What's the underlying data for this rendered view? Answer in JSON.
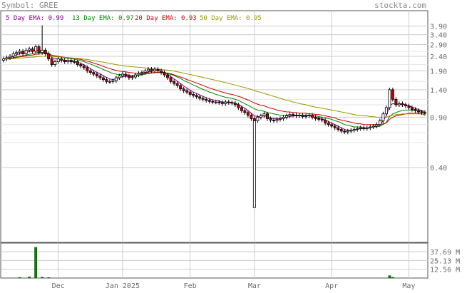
{
  "header": {
    "symbol_label": "Symbol: GREE",
    "brand": "stockta.com"
  },
  "chart_data": [
    {
      "type": "candlestick",
      "symbol": "GREE",
      "legend": [
        {
          "label": "5 Day EMA: 0.99",
          "color": "#880088"
        },
        {
          "label": "13 Day EMA: 0.97",
          "color": "#008800"
        },
        {
          "label": "20 Day EMA: 0.93",
          "color": "#cc0000"
        },
        {
          "label": "50 Day EMA: 0.95",
          "color": "#999900"
        }
      ],
      "y_scale": "log",
      "ylim": [
        0.12,
        5.0
      ],
      "y_ticks": [
        {
          "value": 3.9,
          "label": "3.90"
        },
        {
          "value": 3.4,
          "label": "3.40"
        },
        {
          "value": 2.9,
          "label": "2.90"
        },
        {
          "value": 2.4,
          "label": "2.40"
        },
        {
          "value": 1.9,
          "label": "1.90"
        },
        {
          "value": 1.4,
          "label": "1.40"
        },
        {
          "value": 0.9,
          "label": "0.90"
        },
        {
          "value": 0.4,
          "label": "0.40"
        }
      ],
      "x_ticks": [
        {
          "index": 17,
          "label": "Dec"
        },
        {
          "index": 37,
          "label": "Jan 2025"
        },
        {
          "index": 58,
          "label": "Feb"
        },
        {
          "index": 78,
          "label": "Mar"
        },
        {
          "index": 102,
          "label": "Apr"
        },
        {
          "index": 126,
          "label": "May"
        }
      ],
      "colors": {
        "up": "#ffffff",
        "down": "#cc0000",
        "wick": "#000000",
        "grid": "#cccccc"
      },
      "candles_close": [
        2.3,
        2.35,
        2.4,
        2.5,
        2.55,
        2.6,
        2.5,
        2.65,
        2.7,
        2.6,
        2.8,
        2.55,
        2.65,
        2.5,
        2.3,
        2.1,
        2.2,
        2.3,
        2.25,
        2.2,
        2.25,
        2.2,
        2.2,
        2.1,
        2.05,
        2.0,
        1.9,
        1.85,
        1.8,
        1.75,
        1.7,
        1.65,
        1.6,
        1.6,
        1.62,
        1.7,
        1.75,
        1.8,
        1.75,
        1.7,
        1.72,
        1.78,
        1.82,
        1.85,
        1.9,
        1.95,
        1.9,
        1.95,
        1.9,
        1.85,
        1.78,
        1.7,
        1.6,
        1.55,
        1.5,
        1.42,
        1.38,
        1.35,
        1.3,
        1.28,
        1.25,
        1.22,
        1.2,
        1.18,
        1.16,
        1.15,
        1.15,
        1.14,
        1.12,
        1.15,
        1.14,
        1.13,
        1.1,
        1.05,
        1.0,
        0.97,
        0.93,
        0.88,
        0.85,
        0.9,
        0.92,
        0.95,
        0.88,
        0.86,
        0.85,
        0.87,
        0.88,
        0.9,
        0.92,
        0.94,
        0.93,
        0.92,
        0.93,
        0.91,
        0.92,
        0.93,
        0.9,
        0.88,
        0.87,
        0.86,
        0.82,
        0.8,
        0.78,
        0.76,
        0.74,
        0.72,
        0.71,
        0.72,
        0.73,
        0.74,
        0.75,
        0.76,
        0.75,
        0.76,
        0.77,
        0.78,
        0.8,
        0.85,
        0.95,
        1.05,
        1.4,
        1.2,
        1.1,
        1.12,
        1.1,
        1.08,
        1.05,
        1.02,
        1.0,
        0.98,
        0.97,
        0.96
      ],
      "spike_low": {
        "index": 78,
        "value": 0.21
      },
      "spike_high": {
        "index": 12,
        "value": 3.95
      },
      "ema": {
        "5": [
          2.3,
          2.32,
          2.35,
          2.4,
          2.45,
          2.5,
          2.5,
          2.55,
          2.6,
          2.6,
          2.66,
          2.62,
          2.63,
          2.59,
          2.49,
          2.36,
          2.31,
          2.3,
          2.28,
          2.25,
          2.25,
          2.23,
          2.22,
          2.18,
          2.14,
          2.09,
          2.03,
          1.97,
          1.91,
          1.86,
          1.81,
          1.76,
          1.71,
          1.67,
          1.65,
          1.67,
          1.7,
          1.73,
          1.74,
          1.73,
          1.73,
          1.75,
          1.77,
          1.8,
          1.83,
          1.87,
          1.88,
          1.9,
          1.9,
          1.88,
          1.85,
          1.8,
          1.73,
          1.67,
          1.61,
          1.55,
          1.49,
          1.44,
          1.39,
          1.35,
          1.32,
          1.29,
          1.26,
          1.23,
          1.21,
          1.19,
          1.18,
          1.17,
          1.15,
          1.15,
          1.15,
          1.14,
          1.13,
          1.1,
          1.07,
          1.04,
          1.0,
          0.96,
          0.92,
          0.91,
          0.91,
          0.92,
          0.91,
          0.89,
          0.88,
          0.88,
          0.88,
          0.89,
          0.9,
          0.91,
          0.92,
          0.92,
          0.92,
          0.92,
          0.92,
          0.92,
          0.91,
          0.9,
          0.89,
          0.88,
          0.86,
          0.84,
          0.82,
          0.8,
          0.78,
          0.76,
          0.74,
          0.73,
          0.73,
          0.73,
          0.74,
          0.75,
          0.75,
          0.75,
          0.76,
          0.77,
          0.78,
          0.8,
          0.85,
          0.92,
          1.08,
          1.12,
          1.11,
          1.11,
          1.11,
          1.1,
          1.08,
          1.06,
          1.04,
          1.02,
          1.0,
          0.99
        ],
        "13": [
          2.3,
          2.31,
          2.32,
          2.35,
          2.38,
          2.41,
          2.42,
          2.45,
          2.48,
          2.5,
          2.54,
          2.54,
          2.56,
          2.55,
          2.51,
          2.45,
          2.41,
          2.39,
          2.37,
          2.34,
          2.33,
          2.31,
          2.29,
          2.26,
          2.23,
          2.2,
          2.16,
          2.12,
          2.07,
          2.03,
          1.99,
          1.94,
          1.9,
          1.86,
          1.82,
          1.8,
          1.79,
          1.79,
          1.78,
          1.77,
          1.77,
          1.77,
          1.77,
          1.78,
          1.8,
          1.82,
          1.83,
          1.84,
          1.85,
          1.85,
          1.84,
          1.82,
          1.79,
          1.76,
          1.72,
          1.68,
          1.63,
          1.59,
          1.55,
          1.51,
          1.48,
          1.44,
          1.41,
          1.38,
          1.35,
          1.33,
          1.3,
          1.28,
          1.26,
          1.24,
          1.23,
          1.22,
          1.2,
          1.18,
          1.15,
          1.12,
          1.09,
          1.06,
          1.03,
          1.01,
          1.0,
          0.99,
          0.97,
          0.96,
          0.95,
          0.94,
          0.93,
          0.93,
          0.93,
          0.93,
          0.93,
          0.93,
          0.93,
          0.93,
          0.93,
          0.93,
          0.92,
          0.92,
          0.91,
          0.9,
          0.89,
          0.88,
          0.87,
          0.85,
          0.84,
          0.82,
          0.8,
          0.79,
          0.78,
          0.77,
          0.77,
          0.77,
          0.76,
          0.76,
          0.76,
          0.77,
          0.77,
          0.78,
          0.8,
          0.83,
          0.91,
          0.95,
          0.97,
          0.99,
          1.0,
          1.01,
          1.01,
          1.01,
          1.0,
          1.0,
          0.99,
          0.97
        ],
        "20": [
          2.3,
          2.3,
          2.31,
          2.33,
          2.35,
          2.38,
          2.39,
          2.41,
          2.44,
          2.45,
          2.48,
          2.49,
          2.5,
          2.5,
          2.48,
          2.44,
          2.42,
          2.4,
          2.38,
          2.36,
          2.35,
          2.34,
          2.32,
          2.3,
          2.28,
          2.25,
          2.22,
          2.19,
          2.15,
          2.12,
          2.08,
          2.04,
          2.0,
          1.97,
          1.94,
          1.91,
          1.89,
          1.88,
          1.87,
          1.85,
          1.84,
          1.83,
          1.83,
          1.83,
          1.83,
          1.84,
          1.84,
          1.85,
          1.85,
          1.85,
          1.84,
          1.83,
          1.81,
          1.78,
          1.75,
          1.72,
          1.69,
          1.65,
          1.62,
          1.59,
          1.56,
          1.53,
          1.5,
          1.47,
          1.44,
          1.42,
          1.39,
          1.37,
          1.35,
          1.33,
          1.31,
          1.3,
          1.28,
          1.26,
          1.24,
          1.21,
          1.19,
          1.16,
          1.13,
          1.11,
          1.09,
          1.08,
          1.06,
          1.04,
          1.03,
          1.01,
          1.0,
          0.99,
          0.98,
          0.98,
          0.97,
          0.97,
          0.96,
          0.96,
          0.96,
          0.95,
          0.95,
          0.94,
          0.94,
          0.93,
          0.92,
          0.91,
          0.9,
          0.89,
          0.87,
          0.86,
          0.85,
          0.84,
          0.83,
          0.82,
          0.81,
          0.81,
          0.8,
          0.8,
          0.8,
          0.8,
          0.8,
          0.8,
          0.81,
          0.82,
          0.87,
          0.9,
          0.92,
          0.93,
          0.94,
          0.95,
          0.96,
          0.96,
          0.96,
          0.96,
          0.95,
          0.93
        ],
        "50": [
          2.3,
          2.3,
          2.3,
          2.31,
          2.32,
          2.33,
          2.34,
          2.35,
          2.36,
          2.37,
          2.38,
          2.39,
          2.4,
          2.4,
          2.4,
          2.39,
          2.38,
          2.38,
          2.37,
          2.36,
          2.35,
          2.34,
          2.33,
          2.32,
          2.31,
          2.29,
          2.28,
          2.26,
          2.24,
          2.22,
          2.2,
          2.18,
          2.16,
          2.14,
          2.12,
          2.1,
          2.08,
          2.07,
          2.05,
          2.04,
          2.03,
          2.02,
          2.01,
          2.0,
          1.99,
          1.98,
          1.97,
          1.96,
          1.95,
          1.94,
          1.93,
          1.92,
          1.91,
          1.89,
          1.87,
          1.85,
          1.83,
          1.81,
          1.79,
          1.77,
          1.75,
          1.73,
          1.71,
          1.69,
          1.67,
          1.65,
          1.63,
          1.61,
          1.59,
          1.57,
          1.55,
          1.53,
          1.51,
          1.49,
          1.47,
          1.45,
          1.43,
          1.41,
          1.38,
          1.36,
          1.34,
          1.32,
          1.3,
          1.28,
          1.26,
          1.24,
          1.22,
          1.2,
          1.18,
          1.17,
          1.15,
          1.14,
          1.12,
          1.11,
          1.1,
          1.08,
          1.07,
          1.06,
          1.05,
          1.04,
          1.03,
          1.02,
          1.01,
          1.0,
          0.99,
          0.98,
          0.97,
          0.96,
          0.95,
          0.94,
          0.93,
          0.93,
          0.92,
          0.92,
          0.91,
          0.91,
          0.9,
          0.9,
          0.9,
          0.9,
          0.92,
          0.93,
          0.94,
          0.94,
          0.95,
          0.95,
          0.95,
          0.95,
          0.95,
          0.95,
          0.95,
          0.95
        ]
      }
    },
    {
      "type": "bar",
      "name": "volume",
      "ylim": [
        0,
        50
      ],
      "y_ticks": [
        {
          "value": 37.69,
          "label": "37.69 M"
        },
        {
          "value": 25.13,
          "label": "25.13 M"
        },
        {
          "value": 12.56,
          "label": "12.56 M"
        }
      ],
      "bars": [
        {
          "index": 5,
          "value": 0.8
        },
        {
          "index": 8,
          "value": 1.5
        },
        {
          "index": 10,
          "value": 44.0
        },
        {
          "index": 12,
          "value": 1.2
        },
        {
          "index": 14,
          "value": 0.6
        },
        {
          "index": 120,
          "value": 3.5
        },
        {
          "index": 121,
          "value": 1.0
        }
      ],
      "colors": {
        "up": "#008800",
        "down": "#cc0000"
      }
    }
  ]
}
